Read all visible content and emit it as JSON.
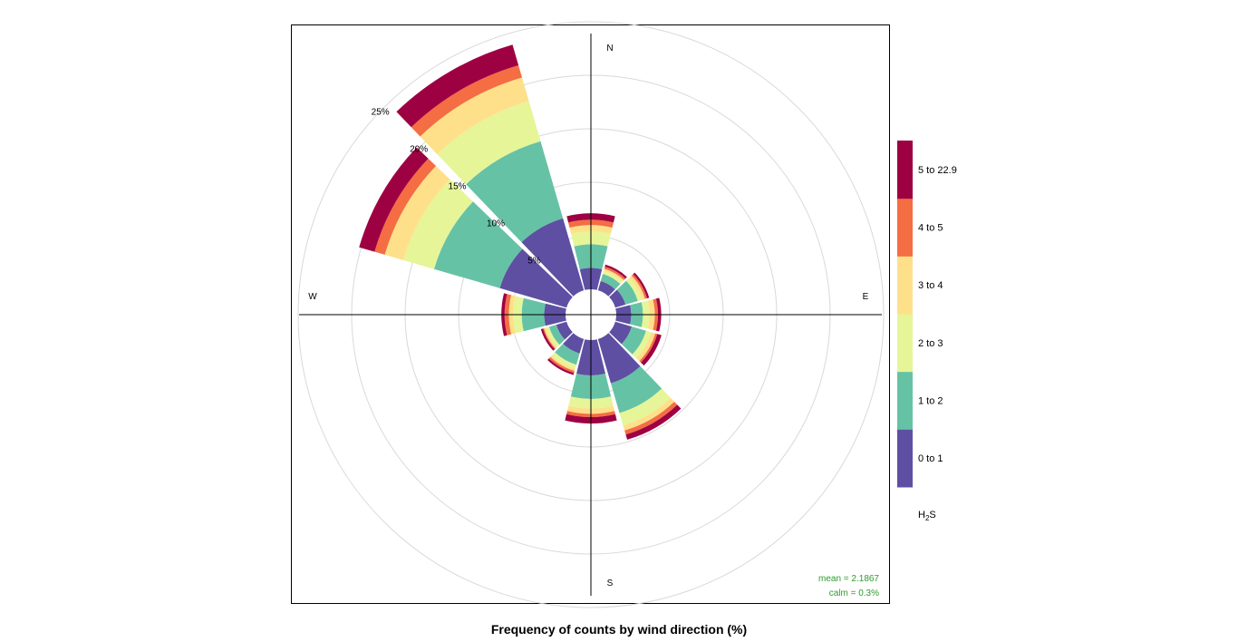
{
  "chart_data": {
    "type": "wind-rose",
    "title": "Frequency of counts by wind direction (%)",
    "directions_deg": [
      0,
      30,
      60,
      90,
      120,
      150,
      180,
      210,
      240,
      270,
      300,
      330
    ],
    "compass_labels": [
      "N",
      "E",
      "S",
      "W"
    ],
    "radial_ticks": [
      "5%",
      "10%",
      "15%",
      "20%",
      "25%"
    ],
    "radial_tick_values": [
      5,
      10,
      15,
      20,
      25
    ],
    "legend_title_main": "H",
    "legend_title_sub": "2",
    "legend_title_tail": "S",
    "series": [
      {
        "name": "0 to 1",
        "color": "#5E4FA2",
        "values": [
          2.0,
          0.9,
          1.0,
          1.4,
          1.6,
          4.3,
          3.3,
          1.4,
          1.0,
          2.0,
          6.5,
          7.0
        ]
      },
      {
        "name": "1 to 2",
        "color": "#66C2A5",
        "values": [
          2.2,
          0.7,
          1.2,
          1.1,
          1.4,
          2.9,
          2.2,
          1.1,
          0.7,
          2.1,
          6.4,
          7.5
        ]
      },
      {
        "name": "2 to 3",
        "color": "#E6F598",
        "values": [
          1.2,
          0.3,
          0.4,
          0.6,
          0.5,
          1.2,
          0.9,
          0.4,
          0.3,
          0.8,
          3.0,
          3.9
        ]
      },
      {
        "name": "3 to 4",
        "color": "#FEE08B",
        "values": [
          0.6,
          0.2,
          0.3,
          0.5,
          0.4,
          0.5,
          0.5,
          0.2,
          0.2,
          0.4,
          1.8,
          2.3
        ]
      },
      {
        "name": "4 to 5",
        "color": "#F46D43",
        "values": [
          0.5,
          0.2,
          0.2,
          0.3,
          0.2,
          0.4,
          0.3,
          0.2,
          0.1,
          0.4,
          1.0,
          1.2
        ]
      },
      {
        "name": "5 to 22.9",
        "color": "#9E0142",
        "values": [
          0.6,
          0.2,
          0.2,
          0.3,
          0.4,
          0.5,
          0.6,
          0.2,
          0.2,
          0.3,
          1.5,
          2.0
        ]
      }
    ],
    "stats": {
      "mean": "mean = 2.1867",
      "calm": "calm = 0.3%"
    },
    "stats_color": "#2E9B2E",
    "grid": true,
    "legend_placement": "right"
  }
}
